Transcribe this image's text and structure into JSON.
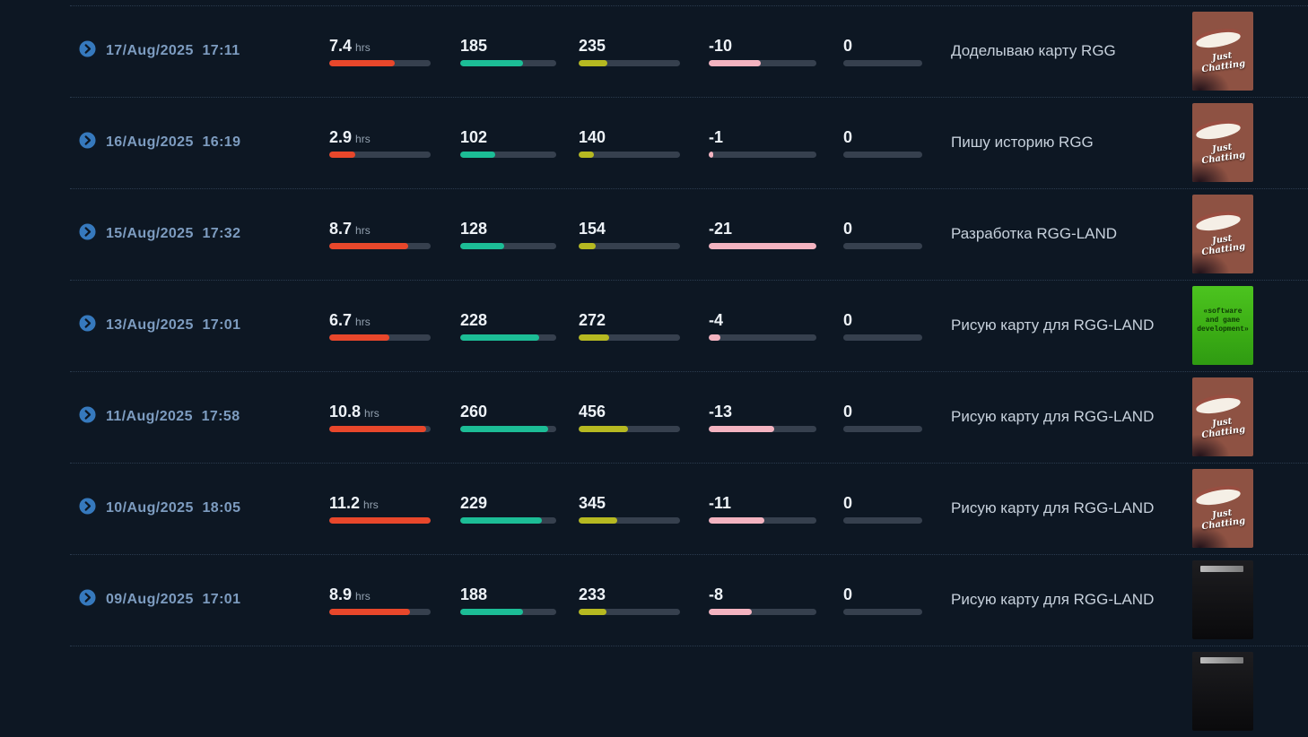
{
  "colors": {
    "bg": "#0d1723",
    "separator": "#2b3b4e",
    "track": "#36404e",
    "duration_fill": "#e8472b",
    "avg_fill": "#1cbd96",
    "peak_fill": "#b6b921",
    "delta_fill": "#f3b3c0",
    "date_text": "#7d9cc0",
    "value_text": "#eef3f8",
    "title_text": "#c7d1dc",
    "chevron_bg": "#3679bd",
    "chevron_glyph": "#0d1723"
  },
  "rows": [
    {
      "date": "17/Aug/2025  17:11",
      "duration": {
        "value": "7.4",
        "unit": "hrs",
        "fill": 65
      },
      "avg": {
        "value": "185",
        "fill": 65
      },
      "peak": {
        "value": "235",
        "fill": 28
      },
      "delta": {
        "value": "-10",
        "fill": 48
      },
      "other": {
        "value": "0",
        "fill": 0
      },
      "title": "Доделываю карту RGG",
      "thumb": {
        "variant": "just-chatting",
        "label": "Just Chatting"
      }
    },
    {
      "date": "16/Aug/2025  16:19",
      "duration": {
        "value": "2.9",
        "unit": "hrs",
        "fill": 26
      },
      "avg": {
        "value": "102",
        "fill": 36
      },
      "peak": {
        "value": "140",
        "fill": 15
      },
      "delta": {
        "value": "-1",
        "fill": 4
      },
      "other": {
        "value": "0",
        "fill": 0
      },
      "title": "Пишу историю RGG",
      "thumb": {
        "variant": "just-chatting",
        "label": "Just Chatting"
      }
    },
    {
      "date": "15/Aug/2025  17:32",
      "duration": {
        "value": "8.7",
        "unit": "hrs",
        "fill": 78
      },
      "avg": {
        "value": "128",
        "fill": 46
      },
      "peak": {
        "value": "154",
        "fill": 17
      },
      "delta": {
        "value": "-21",
        "fill": 100
      },
      "other": {
        "value": "0",
        "fill": 0
      },
      "title": "Разработка RGG-LAND",
      "thumb": {
        "variant": "just-chatting",
        "label": "Just Chatting"
      }
    },
    {
      "date": "13/Aug/2025  17:01",
      "duration": {
        "value": "6.7",
        "unit": "hrs",
        "fill": 59
      },
      "avg": {
        "value": "228",
        "fill": 82
      },
      "peak": {
        "value": "272",
        "fill": 30
      },
      "delta": {
        "value": "-4",
        "fill": 11
      },
      "other": {
        "value": "0",
        "fill": 0
      },
      "title": "Рисую карту для RGG-LAND",
      "thumb": {
        "variant": "dev",
        "label": "«software and game development»"
      }
    },
    {
      "date": "11/Aug/2025  17:58",
      "duration": {
        "value": "10.8",
        "unit": "hrs",
        "fill": 96
      },
      "avg": {
        "value": "260",
        "fill": 92
      },
      "peak": {
        "value": "456",
        "fill": 49
      },
      "delta": {
        "value": "-13",
        "fill": 61
      },
      "other": {
        "value": "0",
        "fill": 0
      },
      "title": "Рисую карту для RGG-LAND",
      "thumb": {
        "variant": "just-chatting",
        "label": "Just Chatting"
      }
    },
    {
      "date": "10/Aug/2025  18:05",
      "duration": {
        "value": "11.2",
        "unit": "hrs",
        "fill": 100
      },
      "avg": {
        "value": "229",
        "fill": 85
      },
      "peak": {
        "value": "345",
        "fill": 38
      },
      "delta": {
        "value": "-11",
        "fill": 52
      },
      "other": {
        "value": "0",
        "fill": 0
      },
      "title": "Рисую карту для RGG-LAND",
      "thumb": {
        "variant": "just-chatting",
        "label": "Just Chatting"
      }
    },
    {
      "date": "09/Aug/2025  17:01",
      "duration": {
        "value": "8.9",
        "unit": "hrs",
        "fill": 80
      },
      "avg": {
        "value": "188",
        "fill": 65
      },
      "peak": {
        "value": "233",
        "fill": 27
      },
      "delta": {
        "value": "-8",
        "fill": 40
      },
      "other": {
        "value": "0",
        "fill": 0
      },
      "title": "Рисую карту для RGG-LAND",
      "thumb": {
        "variant": "dark",
        "label": ""
      }
    },
    {
      "thumb": {
        "variant": "dark",
        "label": ""
      }
    }
  ]
}
